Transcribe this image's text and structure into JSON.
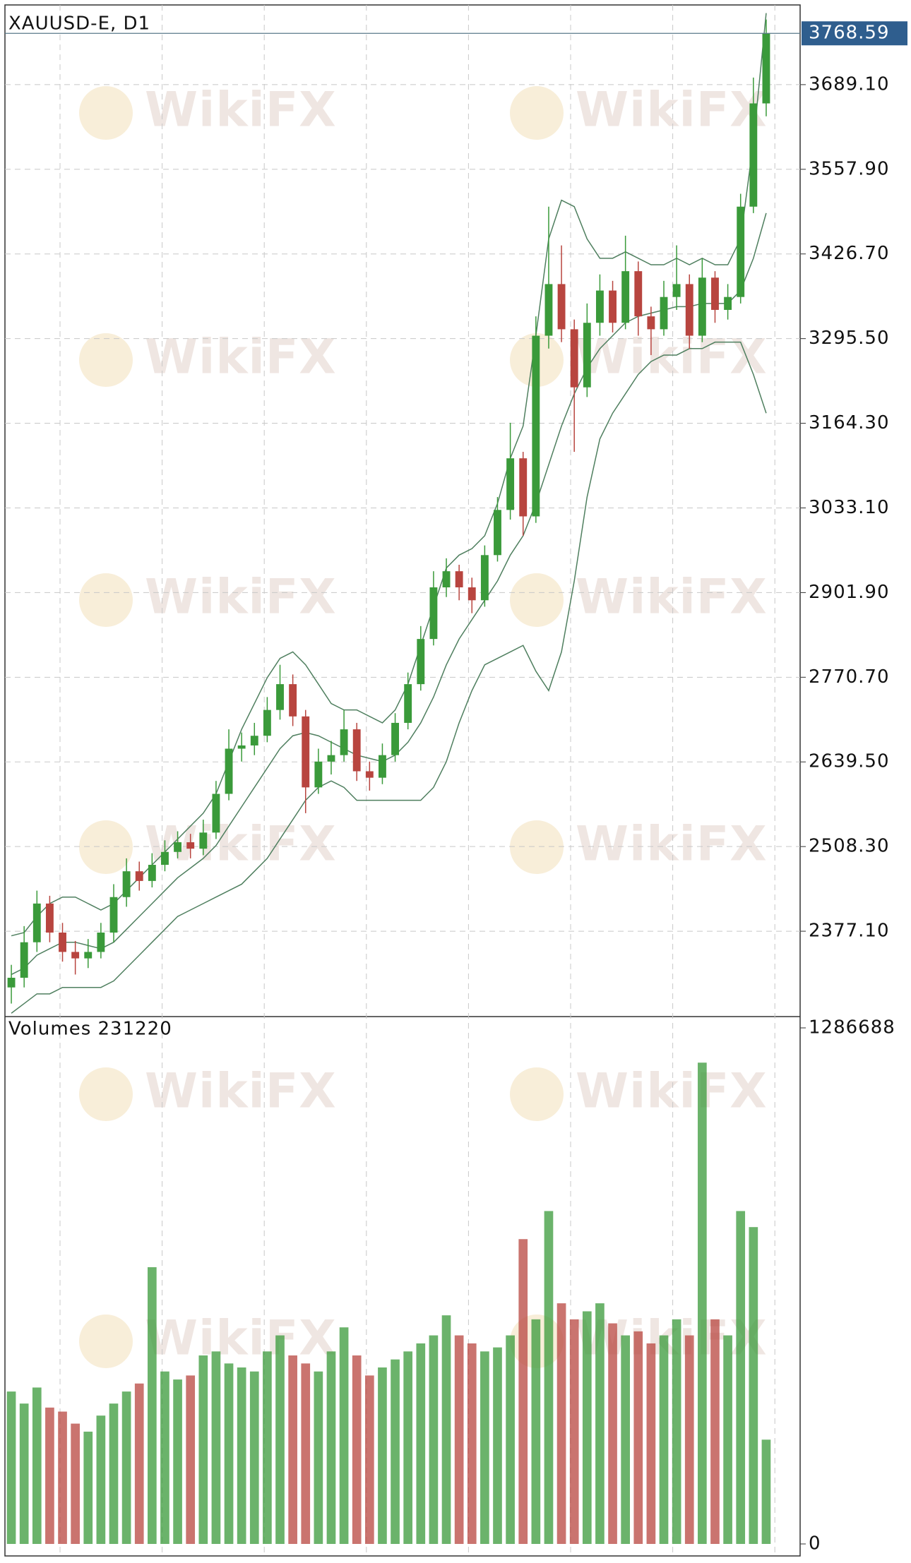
{
  "chart_data": [
    {
      "type": "candlestick",
      "title": "XAUUSD-E, D1",
      "watermark": "WikiFX",
      "categories": [
        null,
        null,
        null,
        null,
        null,
        null,
        null,
        null,
        null,
        null,
        null,
        null,
        null,
        null,
        null,
        null,
        null,
        null,
        null,
        null,
        null,
        null,
        null,
        null,
        null,
        null,
        null,
        null,
        null,
        null,
        null,
        null,
        null,
        null,
        null,
        null,
        null,
        null,
        null,
        null,
        null,
        null,
        null,
        null,
        null,
        null,
        null,
        null,
        null,
        null,
        null,
        null,
        null,
        null,
        null,
        null,
        null,
        null,
        null,
        null
      ],
      "open": [
        2290,
        2305,
        2360,
        2420,
        2375,
        2345,
        2335,
        2345,
        2375,
        2430,
        2470,
        2455,
        2480,
        2500,
        2515,
        2505,
        2530,
        2590,
        2660,
        2665,
        2680,
        2720,
        2760,
        2710,
        2600,
        2640,
        2650,
        2690,
        2625,
        2615,
        2650,
        2700,
        2760,
        2830,
        2910,
        2935,
        2910,
        2890,
        2960,
        3030,
        3110,
        3020,
        3300,
        3380,
        3310,
        3220,
        3320,
        3370,
        3320,
        3400,
        3330,
        3310,
        3360,
        3380,
        3300,
        3390,
        3340,
        3360,
        3500,
        3660
      ],
      "high": [
        2325,
        2385,
        2440,
        2432,
        2390,
        2362,
        2365,
        2390,
        2450,
        2490,
        2485,
        2498,
        2518,
        2532,
        2528,
        2550,
        2610,
        2690,
        2685,
        2700,
        2740,
        2790,
        2775,
        2720,
        2660,
        2672,
        2720,
        2700,
        2640,
        2668,
        2715,
        2778,
        2850,
        2935,
        2955,
        2945,
        2925,
        2975,
        3050,
        3165,
        3120,
        3330,
        3500,
        3440,
        3325,
        3350,
        3395,
        3385,
        3455,
        3415,
        3345,
        3385,
        3440,
        3395,
        3420,
        3400,
        3380,
        3520,
        3700,
        3790
      ],
      "low": [
        2265,
        2290,
        2345,
        2360,
        2330,
        2310,
        2320,
        2335,
        2360,
        2415,
        2440,
        2445,
        2470,
        2490,
        2490,
        2495,
        2520,
        2580,
        2640,
        2650,
        2670,
        2705,
        2695,
        2560,
        2590,
        2620,
        2640,
        2610,
        2595,
        2605,
        2640,
        2690,
        2750,
        2820,
        2895,
        2890,
        2870,
        2880,
        2950,
        3015,
        2990,
        3010,
        3280,
        3290,
        3120,
        3205,
        3300,
        3305,
        3310,
        3300,
        3270,
        3300,
        3340,
        3280,
        3290,
        3320,
        3325,
        3350,
        3490,
        3640
      ],
      "close": [
        2305,
        2360,
        2420,
        2375,
        2345,
        2335,
        2345,
        2375,
        2430,
        2470,
        2455,
        2480,
        2500,
        2515,
        2505,
        2530,
        2590,
        2660,
        2665,
        2680,
        2720,
        2760,
        2710,
        2600,
        2640,
        2650,
        2690,
        2625,
        2615,
        2650,
        2700,
        2760,
        2830,
        2910,
        2935,
        2910,
        2890,
        2960,
        3030,
        3110,
        3020,
        3300,
        3380,
        3310,
        3220,
        3320,
        3370,
        3320,
        3400,
        3330,
        3310,
        3360,
        3380,
        3300,
        3390,
        3340,
        3360,
        3500,
        3660,
        3768.59
      ],
      "up_color": "#3a9a3a",
      "down_color": "#b8453f",
      "bands": [
        {
          "color": "#4f7f5f",
          "values": [
            2370,
            2375,
            2400,
            2420,
            2430,
            2430,
            2420,
            2410,
            2420,
            2440,
            2460,
            2480,
            2500,
            2520,
            2540,
            2560,
            2590,
            2640,
            2690,
            2730,
            2770,
            2800,
            2810,
            2790,
            2760,
            2730,
            2720,
            2720,
            2710,
            2700,
            2720,
            2760,
            2820,
            2880,
            2940,
            2960,
            2970,
            2990,
            3040,
            3110,
            3160,
            3300,
            3450,
            3510,
            3500,
            3450,
            3420,
            3420,
            3430,
            3420,
            3410,
            3410,
            3420,
            3410,
            3420,
            3410,
            3410,
            3450,
            3600,
            3800
          ]
        },
        {
          "color": "#4f7f5f",
          "values": [
            2310,
            2320,
            2340,
            2350,
            2360,
            2360,
            2355,
            2350,
            2360,
            2380,
            2400,
            2420,
            2440,
            2460,
            2475,
            2490,
            2510,
            2540,
            2570,
            2600,
            2630,
            2660,
            2680,
            2685,
            2680,
            2670,
            2660,
            2650,
            2645,
            2640,
            2650,
            2670,
            2700,
            2740,
            2790,
            2830,
            2860,
            2890,
            2920,
            2960,
            2990,
            3040,
            3100,
            3160,
            3210,
            3250,
            3280,
            3300,
            3320,
            3330,
            3335,
            3340,
            3345,
            3345,
            3350,
            3350,
            3350,
            3370,
            3420,
            3490
          ]
        },
        {
          "color": "#4f7f5f",
          "values": [
            2250,
            2265,
            2280,
            2280,
            2290,
            2290,
            2290,
            2290,
            2300,
            2320,
            2340,
            2360,
            2380,
            2400,
            2410,
            2420,
            2430,
            2440,
            2450,
            2470,
            2490,
            2520,
            2550,
            2580,
            2600,
            2610,
            2600,
            2580,
            2580,
            2580,
            2580,
            2580,
            2580,
            2600,
            2640,
            2700,
            2750,
            2790,
            2800,
            2810,
            2820,
            2780,
            2750,
            2810,
            2920,
            3050,
            3140,
            3180,
            3210,
            3240,
            3260,
            3270,
            3270,
            3280,
            3280,
            3290,
            3290,
            3290,
            3240,
            3180
          ]
        }
      ],
      "last_price": 3768.59,
      "last_price_color": "#2f5e8e",
      "ylim": [
        2245.9,
        3812.6
      ],
      "yticks": [
        {
          "value": 2377.1,
          "label": "2377.10"
        },
        {
          "value": 2508.3,
          "label": "2508.30"
        },
        {
          "value": 2639.5,
          "label": "2639.50"
        },
        {
          "value": 2770.7,
          "label": "2770.70"
        },
        {
          "value": 2901.9,
          "label": "2901.90"
        },
        {
          "value": 3033.1,
          "label": "3033.10"
        },
        {
          "value": 3164.3,
          "label": "3164.30"
        },
        {
          "value": 3295.5,
          "label": "3295.50"
        },
        {
          "value": 3426.7,
          "label": "3426.70"
        },
        {
          "value": 3557.9,
          "label": "3557.90"
        },
        {
          "value": 3689.1,
          "label": "3689.10"
        }
      ],
      "grid": true
    },
    {
      "type": "bar",
      "title": "Volumes 231220",
      "categories": [
        null,
        null,
        null,
        null,
        null,
        null,
        null,
        null,
        null,
        null,
        null,
        null,
        null,
        null,
        null,
        null,
        null,
        null,
        null,
        null,
        null,
        null,
        null,
        null,
        null,
        null,
        null,
        null,
        null,
        null,
        null,
        null,
        null,
        null,
        null,
        null,
        null,
        null,
        null,
        null,
        null,
        null,
        null,
        null,
        null,
        null,
        null,
        null,
        null,
        null,
        null,
        null,
        null,
        null,
        null,
        null,
        null,
        null,
        null,
        null
      ],
      "values": [
        380000,
        350000,
        390000,
        340000,
        330000,
        300000,
        280000,
        320000,
        350000,
        380000,
        400000,
        690000,
        430000,
        410000,
        420000,
        470000,
        480000,
        450000,
        440000,
        430000,
        480000,
        520000,
        470000,
        450000,
        430000,
        480000,
        540000,
        470000,
        420000,
        440000,
        460000,
        480000,
        500000,
        520000,
        570000,
        520000,
        500000,
        480000,
        490000,
        520000,
        760000,
        560000,
        830000,
        600000,
        560000,
        580000,
        600000,
        550000,
        520000,
        530000,
        500000,
        520000,
        560000,
        520000,
        1200000,
        560000,
        520000,
        830000,
        790000,
        260000
      ],
      "ylim": [
        0,
        1286688
      ],
      "yticks": [
        0,
        1286688
      ]
    }
  ]
}
